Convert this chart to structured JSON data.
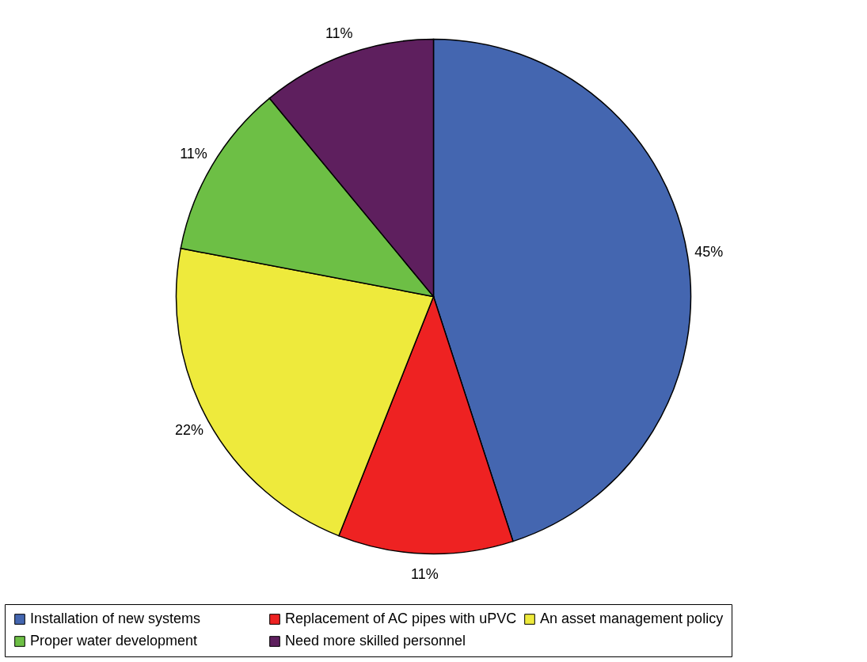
{
  "chart_data": {
    "type": "pie",
    "categories": [
      "Installation of new systems",
      "Replacement of AC pipes with uPVC",
      "An asset management policy",
      "Proper water development",
      "Need more skilled personnel"
    ],
    "values": [
      45,
      11,
      22,
      11,
      11
    ],
    "value_labels": [
      "45%",
      "11%",
      "22%",
      "11%",
      "11%"
    ],
    "colors": [
      "#4466b0",
      "#ee2222",
      "#eeea3c",
      "#6dbf45",
      "#5e1f5e"
    ],
    "legend": "bottom"
  }
}
